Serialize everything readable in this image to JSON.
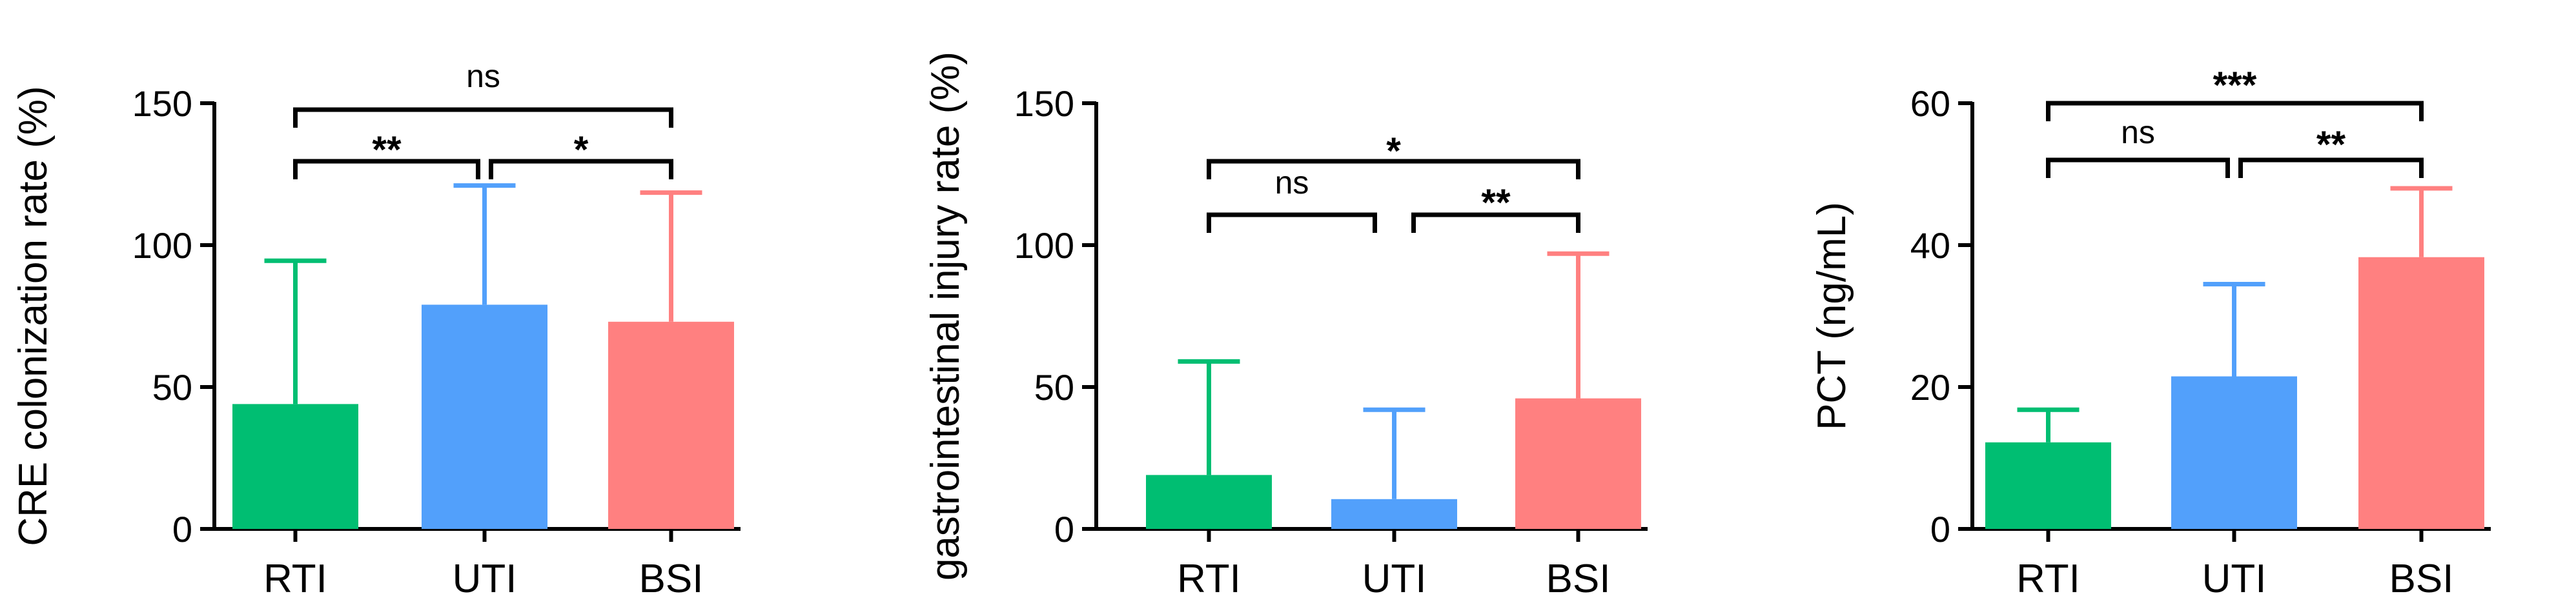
{
  "chart_data": [
    {
      "type": "bar",
      "ylabel": "CRE colonization rate (%)",
      "categories": [
        "RTI",
        "UTI",
        "BSI"
      ],
      "values": [
        44,
        79,
        73
      ],
      "error_upper": [
        94.5,
        121,
        118.5
      ],
      "ylim": [
        0,
        150
      ],
      "yticks": [
        "0",
        "50",
        "100",
        "150"
      ],
      "colors": [
        "#00BE72",
        "#52A0FB",
        "#FF8080"
      ],
      "significance": [
        {
          "from": 0,
          "to": 1,
          "label": "**"
        },
        {
          "from": 1,
          "to": 2,
          "label": "*"
        },
        {
          "from": 0,
          "to": 2,
          "label": "ns"
        }
      ]
    },
    {
      "type": "bar",
      "ylabel": "gastrointestinal injury rate (%)",
      "categories": [
        "RTI",
        "UTI",
        "BSI"
      ],
      "values": [
        19,
        10.5,
        46
      ],
      "error_upper": [
        59,
        42,
        97
      ],
      "ylim": [
        0,
        150
      ],
      "yticks": [
        "0",
        "50",
        "100",
        "150"
      ],
      "colors": [
        "#00BE72",
        "#52A0FB",
        "#FF8080"
      ],
      "significance": [
        {
          "from": 0,
          "to": 1,
          "label": "ns"
        },
        {
          "from": 1,
          "to": 2,
          "label": "**"
        },
        {
          "from": 0,
          "to": 2,
          "label": "*"
        }
      ]
    },
    {
      "type": "bar",
      "ylabel": "PCT (ng/mL)",
      "categories": [
        "RTI",
        "UTI",
        "BSI"
      ],
      "values": [
        12.2,
        21.5,
        38.3
      ],
      "error_upper": [
        16.8,
        34.5,
        48
      ],
      "ylim": [
        0,
        60
      ],
      "yticks": [
        "0",
        "20",
        "40",
        "60"
      ],
      "colors": [
        "#00BE72",
        "#52A0FB",
        "#FF8080"
      ],
      "significance": [
        {
          "from": 0,
          "to": 1,
          "label": "ns"
        },
        {
          "from": 1,
          "to": 2,
          "label": "**"
        },
        {
          "from": 0,
          "to": 2,
          "label": "***"
        }
      ]
    }
  ]
}
